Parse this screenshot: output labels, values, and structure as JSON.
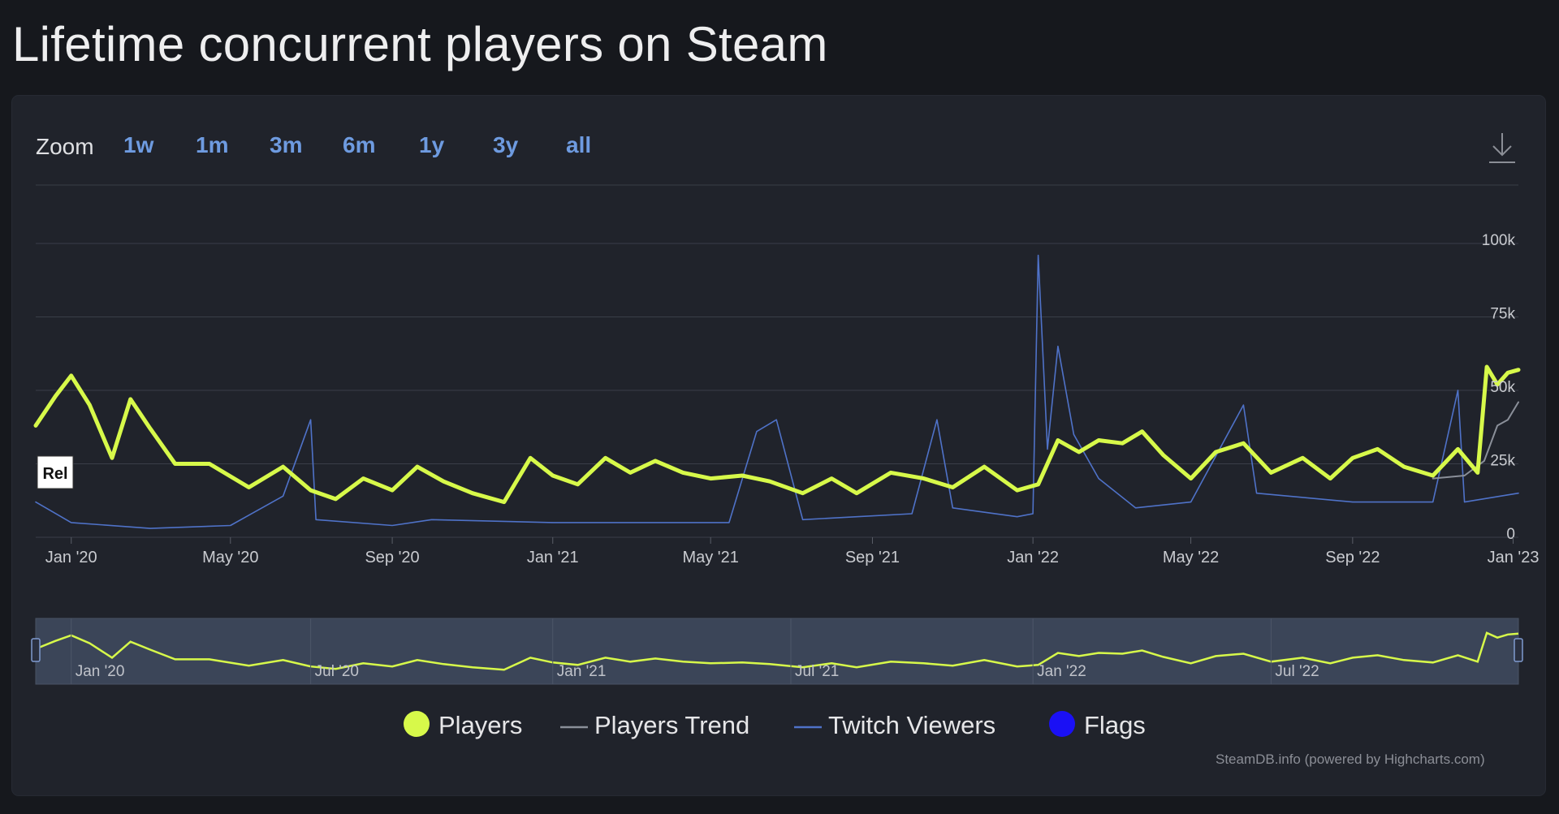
{
  "page_title": "Lifetime concurrent players on Steam",
  "zoom": {
    "label": "Zoom",
    "buttons": [
      "1w",
      "1m",
      "3m",
      "6m",
      "1y",
      "3y",
      "all"
    ]
  },
  "icons": {
    "download": "download-icon"
  },
  "release_flag": "Rel",
  "colors": {
    "background": "#16181d",
    "panel": "#20232b",
    "players": "#d7f94a",
    "twitch": "#4f72c8",
    "trend": "#8a8f99",
    "flags": "#1a10f5",
    "zoom_button": "#6e9be0"
  },
  "legend": [
    {
      "name": "Players",
      "symbol": "dot",
      "color": "#d7f94a"
    },
    {
      "name": "Players Trend",
      "symbol": "line",
      "color": "#8a8f99"
    },
    {
      "name": "Twitch Viewers",
      "symbol": "line",
      "color": "#4f72c8"
    },
    {
      "name": "Flags",
      "symbol": "dot",
      "color": "#1a10f5"
    }
  ],
  "credits": "SteamDB.info (powered by Highcharts.com)",
  "chart_data": {
    "type": "line",
    "y_axis": {
      "ticks": [
        "0",
        "25k",
        "50k",
        "75k",
        "100k"
      ],
      "tick_values": [
        0,
        25000,
        50000,
        75000,
        100000
      ],
      "range": [
        0,
        100000
      ]
    },
    "x_axis": {
      "range": [
        "2019-12-05",
        "2023-01-05"
      ],
      "ticks": [
        "Jan '20",
        "May '20",
        "Sep '20",
        "Jan '21",
        "May '21",
        "Sep '21",
        "Jan '22",
        "May '22",
        "Sep '22",
        "Jan '23"
      ],
      "tick_dates": [
        "2020-01-01",
        "2020-05-01",
        "2020-09-01",
        "2021-01-01",
        "2021-05-01",
        "2021-09-01",
        "2022-01-01",
        "2022-05-01",
        "2022-09-01",
        "2023-01-01"
      ]
    },
    "navigator": {
      "labels": [
        "Jan '20",
        "Jul '20",
        "Jan '21",
        "Jul '21",
        "Jan '22",
        "Jul '22"
      ],
      "label_dates": [
        "2020-01-01",
        "2020-07-01",
        "2021-01-01",
        "2021-07-01",
        "2022-01-01",
        "2022-07-01"
      ]
    },
    "grid": true,
    "legend_position": "bottom",
    "series": [
      {
        "name": "Players",
        "color": "#d7f94a",
        "points": [
          [
            "2019-12-05",
            38000
          ],
          [
            "2019-12-20",
            48000
          ],
          [
            "2020-01-01",
            55000
          ],
          [
            "2020-01-15",
            45000
          ],
          [
            "2020-02-01",
            27000
          ],
          [
            "2020-02-15",
            47000
          ],
          [
            "2020-03-01",
            37000
          ],
          [
            "2020-03-20",
            25000
          ],
          [
            "2020-04-15",
            25000
          ],
          [
            "2020-05-15",
            17000
          ],
          [
            "2020-06-10",
            24000
          ],
          [
            "2020-07-01",
            16000
          ],
          [
            "2020-07-20",
            13000
          ],
          [
            "2020-08-10",
            20000
          ],
          [
            "2020-09-01",
            16000
          ],
          [
            "2020-09-20",
            24000
          ],
          [
            "2020-10-10",
            19000
          ],
          [
            "2020-11-01",
            15000
          ],
          [
            "2020-11-25",
            12000
          ],
          [
            "2020-12-15",
            27000
          ],
          [
            "2021-01-01",
            21000
          ],
          [
            "2021-01-20",
            18000
          ],
          [
            "2021-02-10",
            27000
          ],
          [
            "2021-03-01",
            22000
          ],
          [
            "2021-03-20",
            26000
          ],
          [
            "2021-04-10",
            22000
          ],
          [
            "2021-05-01",
            20000
          ],
          [
            "2021-05-25",
            21000
          ],
          [
            "2021-06-15",
            19000
          ],
          [
            "2021-07-10",
            15000
          ],
          [
            "2021-08-01",
            20000
          ],
          [
            "2021-08-20",
            15000
          ],
          [
            "2021-09-15",
            22000
          ],
          [
            "2021-10-10",
            20000
          ],
          [
            "2021-11-01",
            17000
          ],
          [
            "2021-11-25",
            24000
          ],
          [
            "2021-12-20",
            16000
          ],
          [
            "2022-01-05",
            18000
          ],
          [
            "2022-01-20",
            33000
          ],
          [
            "2022-02-05",
            29000
          ],
          [
            "2022-02-20",
            33000
          ],
          [
            "2022-03-10",
            32000
          ],
          [
            "2022-03-25",
            36000
          ],
          [
            "2022-04-10",
            28000
          ],
          [
            "2022-05-01",
            20000
          ],
          [
            "2022-05-20",
            29000
          ],
          [
            "2022-06-10",
            32000
          ],
          [
            "2022-07-01",
            22000
          ],
          [
            "2022-07-25",
            27000
          ],
          [
            "2022-08-15",
            20000
          ],
          [
            "2022-09-01",
            27000
          ],
          [
            "2022-09-20",
            30000
          ],
          [
            "2022-10-10",
            24000
          ],
          [
            "2022-11-01",
            21000
          ],
          [
            "2022-11-20",
            30000
          ],
          [
            "2022-12-05",
            22000
          ],
          [
            "2022-12-12",
            58000
          ],
          [
            "2022-12-20",
            52000
          ],
          [
            "2022-12-28",
            56000
          ],
          [
            "2023-01-05",
            57000
          ]
        ]
      },
      {
        "name": "Players Trend",
        "color": "#8a8f99",
        "points": [
          [
            "2022-11-01",
            20000
          ],
          [
            "2022-11-25",
            21000
          ],
          [
            "2022-12-10",
            26000
          ],
          [
            "2022-12-20",
            38000
          ],
          [
            "2022-12-28",
            40000
          ],
          [
            "2023-01-05",
            46000
          ]
        ]
      },
      {
        "name": "Twitch Viewers",
        "color": "#4f72c8",
        "points": [
          [
            "2019-12-05",
            12000
          ],
          [
            "2020-01-01",
            5000
          ],
          [
            "2020-03-01",
            3000
          ],
          [
            "2020-05-01",
            4000
          ],
          [
            "2020-06-10",
            14000
          ],
          [
            "2020-07-01",
            40000
          ],
          [
            "2020-07-05",
            6000
          ],
          [
            "2020-09-01",
            4000
          ],
          [
            "2020-10-01",
            6000
          ],
          [
            "2021-01-01",
            5000
          ],
          [
            "2021-05-15",
            5000
          ],
          [
            "2021-06-05",
            36000
          ],
          [
            "2021-06-20",
            40000
          ],
          [
            "2021-07-10",
            6000
          ],
          [
            "2021-10-01",
            8000
          ],
          [
            "2021-10-20",
            40000
          ],
          [
            "2021-11-01",
            10000
          ],
          [
            "2021-12-20",
            7000
          ],
          [
            "2022-01-01",
            8000
          ],
          [
            "2022-01-05",
            96000
          ],
          [
            "2022-01-12",
            30000
          ],
          [
            "2022-01-20",
            65000
          ],
          [
            "2022-02-01",
            35000
          ],
          [
            "2022-02-20",
            20000
          ],
          [
            "2022-03-20",
            10000
          ],
          [
            "2022-05-01",
            12000
          ],
          [
            "2022-06-10",
            45000
          ],
          [
            "2022-06-20",
            15000
          ],
          [
            "2022-09-01",
            12000
          ],
          [
            "2022-11-01",
            12000
          ],
          [
            "2022-11-20",
            50000
          ],
          [
            "2022-11-25",
            12000
          ],
          [
            "2023-01-05",
            15000
          ]
        ]
      }
    ]
  }
}
